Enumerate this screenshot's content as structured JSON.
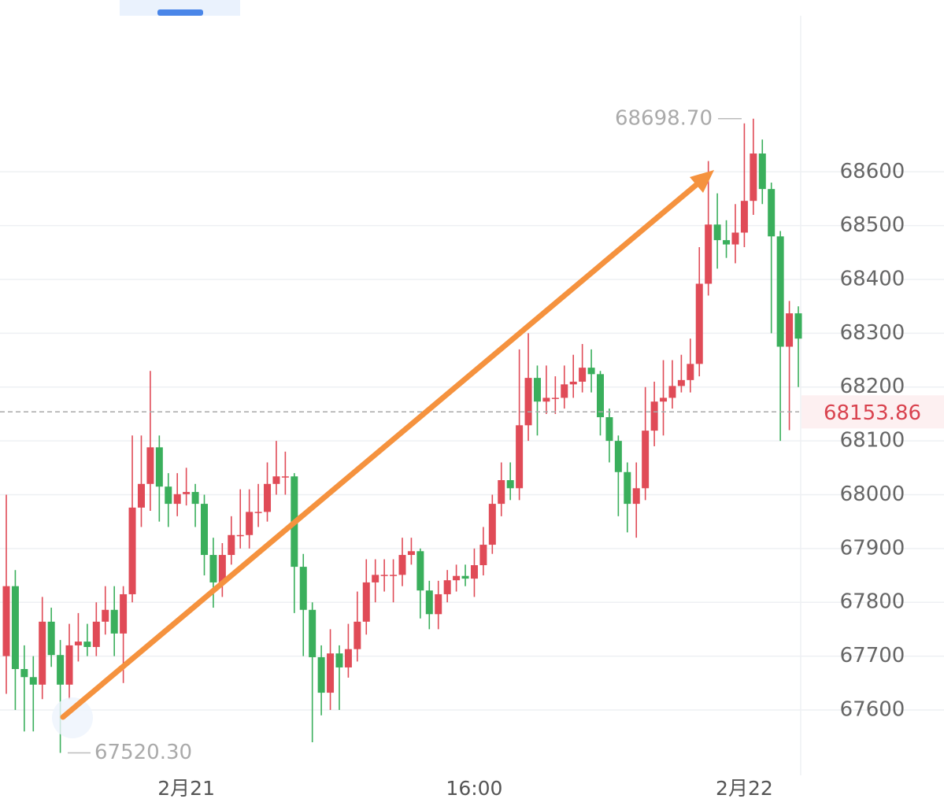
{
  "chart_data": {
    "type": "candlestick",
    "up_color": "#e04b57",
    "down_color": "#3aaf5c",
    "ylim": [
      67480,
      68890
    ],
    "yticks": [
      67600,
      67700,
      67800,
      67900,
      68000,
      68100,
      68200,
      68300,
      68400,
      68500,
      68600
    ],
    "grid": true,
    "categories": [
      null,
      null,
      null,
      null,
      null,
      null,
      null,
      null,
      null,
      null,
      null,
      null,
      null,
      null,
      null,
      null,
      null,
      null,
      null,
      null,
      "2月21",
      null,
      null,
      null,
      null,
      null,
      null,
      null,
      null,
      null,
      null,
      null,
      null,
      null,
      null,
      null,
      null,
      null,
      null,
      null,
      null,
      null,
      null,
      null,
      null,
      null,
      null,
      null,
      null,
      null,
      null,
      null,
      "16:00",
      null,
      null,
      null,
      null,
      null,
      null,
      null,
      null,
      null,
      null,
      null,
      null,
      null,
      null,
      null,
      null,
      null,
      null,
      null,
      null,
      null,
      null,
      null,
      null,
      null,
      null,
      null,
      null,
      null,
      "2月22",
      null,
      null,
      null,
      null
    ],
    "ohlc": [
      [
        67700,
        68000,
        67630,
        67830
      ],
      [
        67830,
        67860,
        67600,
        67676
      ],
      [
        67676,
        67720,
        67560,
        67661
      ],
      [
        67661,
        67700,
        67560,
        67647
      ],
      [
        67647,
        67810,
        67620,
        67764
      ],
      [
        67764,
        67790,
        67680,
        67702
      ],
      [
        67702,
        67730,
        67520.3,
        67647
      ],
      [
        67647,
        67760,
        67620,
        67720
      ],
      [
        67720,
        67780,
        67690,
        67727
      ],
      [
        67727,
        67760,
        67700,
        67717
      ],
      [
        67717,
        67800,
        67700,
        67764
      ],
      [
        67764,
        67830,
        67740,
        67786
      ],
      [
        67786,
        67830,
        67700,
        67742
      ],
      [
        67742,
        67830,
        67650,
        67815
      ],
      [
        67815,
        68110,
        67800,
        67976
      ],
      [
        67976,
        68110,
        67940,
        68020
      ],
      [
        68020,
        68230,
        67970,
        68088
      ],
      [
        68088,
        68110,
        67950,
        68015
      ],
      [
        68015,
        68040,
        67940,
        67983
      ],
      [
        67983,
        68040,
        67960,
        68001
      ],
      [
        68001,
        68050,
        67980,
        68005
      ],
      [
        68005,
        68020,
        67940,
        67983
      ],
      [
        67983,
        68000,
        67850,
        67888
      ],
      [
        67888,
        67920,
        67790,
        67837
      ],
      [
        67837,
        67910,
        67810,
        67888
      ],
      [
        67888,
        67960,
        67870,
        67925
      ],
      [
        67925,
        68010,
        67900,
        67925
      ],
      [
        67925,
        68010,
        67900,
        67968
      ],
      [
        67968,
        68020,
        67940,
        67968
      ],
      [
        67968,
        68060,
        67950,
        68020
      ],
      [
        68020,
        68100,
        68000,
        68034
      ],
      [
        68034,
        68080,
        68000,
        68034
      ],
      [
        68034,
        68040,
        67780,
        67866
      ],
      [
        67866,
        67890,
        67700,
        67786
      ],
      [
        67786,
        67800,
        67540,
        67698
      ],
      [
        67698,
        67720,
        67590,
        67632
      ],
      [
        67632,
        67750,
        67600,
        67705
      ],
      [
        67705,
        67720,
        67600,
        67679
      ],
      [
        67679,
        67760,
        67660,
        67713
      ],
      [
        67713,
        67820,
        67690,
        67764
      ],
      [
        67764,
        67880,
        67740,
        67837
      ],
      [
        67837,
        67880,
        67800,
        67851
      ],
      [
        67851,
        67880,
        67820,
        67851
      ],
      [
        67851,
        67880,
        67800,
        67851
      ],
      [
        67851,
        67920,
        67830,
        67888
      ],
      [
        67888,
        67920,
        67870,
        67895
      ],
      [
        67895,
        67900,
        67770,
        67822
      ],
      [
        67822,
        67840,
        67750,
        67778
      ],
      [
        67778,
        67840,
        67750,
        67815
      ],
      [
        67815,
        67860,
        67800,
        67841
      ],
      [
        67841,
        67870,
        67820,
        67849
      ],
      [
        67849,
        67870,
        67830,
        67844
      ],
      [
        67844,
        67900,
        67810,
        67869
      ],
      [
        67869,
        67940,
        67850,
        67907
      ],
      [
        67907,
        68000,
        67890,
        67983
      ],
      [
        67983,
        68060,
        67960,
        68027
      ],
      [
        68027,
        68060,
        67990,
        68012
      ],
      [
        68012,
        68270,
        67990,
        68129
      ],
      [
        68129,
        68300,
        68100,
        68217
      ],
      [
        68217,
        68240,
        68110,
        68173
      ],
      [
        68173,
        68240,
        68150,
        68180
      ],
      [
        68180,
        68220,
        68150,
        68180
      ],
      [
        68180,
        68240,
        68160,
        68205
      ],
      [
        68205,
        68260,
        68180,
        68210
      ],
      [
        68210,
        68280,
        68190,
        68236
      ],
      [
        68236,
        68270,
        68190,
        68224
      ],
      [
        68224,
        68230,
        68110,
        68144
      ],
      [
        68144,
        68160,
        68060,
        68100
      ],
      [
        68100,
        68110,
        67960,
        68042
      ],
      [
        68042,
        68060,
        67930,
        67983
      ],
      [
        67983,
        68060,
        67920,
        68012
      ],
      [
        68012,
        68200,
        67990,
        68119
      ],
      [
        68119,
        68210,
        68090,
        68173
      ],
      [
        68173,
        68250,
        68110,
        68180
      ],
      [
        68180,
        68250,
        68160,
        68202
      ],
      [
        68202,
        68260,
        68190,
        68213
      ],
      [
        68213,
        68290,
        68190,
        68243
      ],
      [
        68243,
        68460,
        68220,
        68392
      ],
      [
        68392,
        68620,
        68370,
        68502
      ],
      [
        68502,
        68560,
        68420,
        68473
      ],
      [
        68473,
        68510,
        68440,
        68465
      ],
      [
        68465,
        68540,
        68430,
        68487
      ],
      [
        68487,
        68690,
        68460,
        68546
      ],
      [
        68546,
        68698.7,
        68520,
        68634
      ],
      [
        68634,
        68660,
        68540,
        68568
      ],
      [
        68568,
        68580,
        68300,
        68480
      ],
      [
        68480,
        68490,
        68100,
        68275
      ],
      [
        68275,
        68360,
        68120,
        68337
      ],
      [
        68337,
        68350,
        68200,
        68290
      ]
    ],
    "high_label": {
      "value": 68698.7,
      "label": "68698.70"
    },
    "low_label": {
      "value": 67520.3,
      "label": "67520.30"
    },
    "last_price": 68153.86
  }
}
